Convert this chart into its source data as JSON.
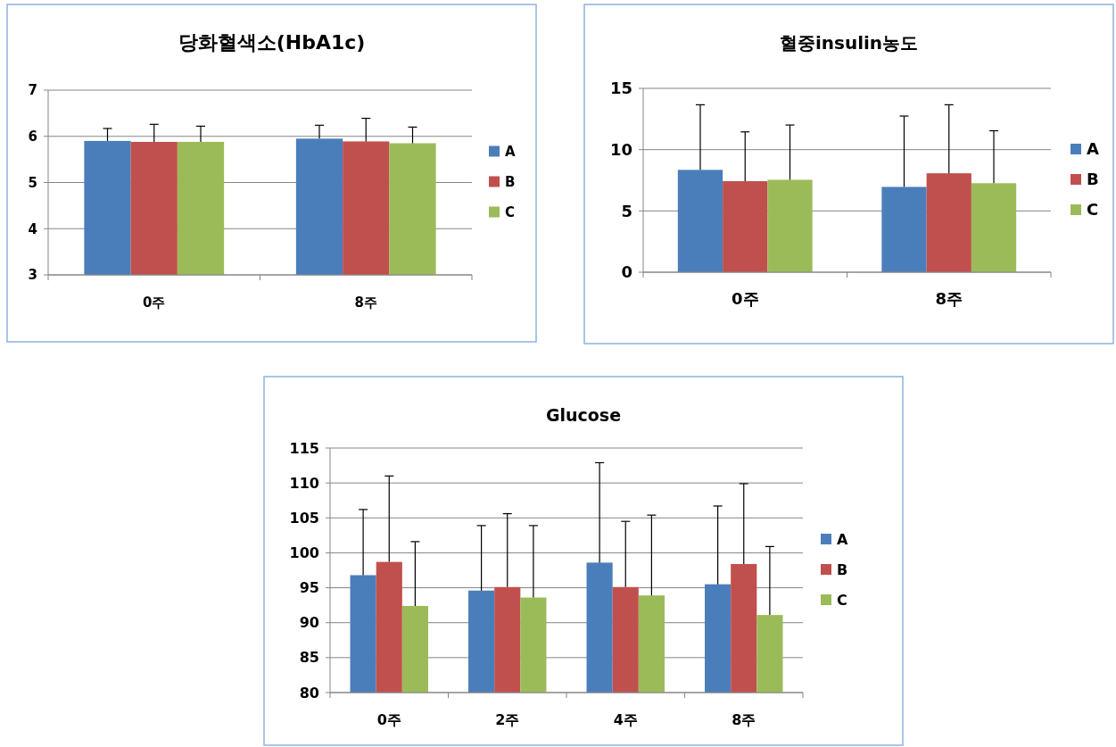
{
  "chart_data": [
    {
      "type": "bar",
      "title": "당화혈색소(HbA1c)",
      "categories": [
        "0주",
        "8주"
      ],
      "ylim": [
        3,
        7
      ],
      "yticks": [
        3,
        4,
        5,
        6,
        7
      ],
      "grid": "y",
      "legend": "right",
      "series": [
        {
          "name": "A",
          "color": "#4a7ebb",
          "values": [
            5.9,
            5.95
          ],
          "errors": [
            [
              5.9,
              6.17
            ],
            [
              5.95,
              6.24
            ]
          ]
        },
        {
          "name": "B",
          "color": "#c0504d",
          "values": [
            5.88,
            5.89
          ],
          "errors": [
            [
              5.88,
              6.26
            ],
            [
              5.89,
              6.39
            ]
          ]
        },
        {
          "name": "C",
          "color": "#9bbb59",
          "values": [
            5.88,
            5.85
          ],
          "errors": [
            [
              5.88,
              6.22
            ],
            [
              5.85,
              6.2
            ]
          ]
        }
      ]
    },
    {
      "type": "bar",
      "title": "혈중insulin농도",
      "categories": [
        "0주",
        "8주"
      ],
      "ylim": [
        0,
        15
      ],
      "yticks": [
        0,
        5,
        10,
        15
      ],
      "grid": "y",
      "legend": "right",
      "series": [
        {
          "name": "A",
          "color": "#4a7ebb",
          "values": [
            8.35,
            6.96
          ],
          "errors": [
            [
              8.35,
              13.66
            ],
            [
              6.96,
              12.74
            ]
          ]
        },
        {
          "name": "B",
          "color": "#c0504d",
          "values": [
            7.43,
            8.07
          ],
          "errors": [
            [
              7.43,
              11.45
            ],
            [
              8.07,
              13.66
            ]
          ]
        },
        {
          "name": "C",
          "color": "#9bbb59",
          "values": [
            7.54,
            7.26
          ],
          "errors": [
            [
              7.54,
              12.01
            ],
            [
              7.26,
              11.54
            ]
          ]
        }
      ]
    },
    {
      "type": "bar",
      "title": "Glucose",
      "categories": [
        "0주",
        "2주",
        "4주",
        "8주"
      ],
      "ylim": [
        80,
        115
      ],
      "yticks": [
        80,
        85,
        90,
        95,
        100,
        105,
        110,
        115
      ],
      "grid": "y",
      "legend": "right",
      "series": [
        {
          "name": "A",
          "color": "#4a7ebb",
          "values": [
            96.8,
            94.6,
            98.6,
            95.5
          ],
          "errors": [
            [
              96.8,
              106.2
            ],
            [
              94.6,
              103.9
            ],
            [
              98.6,
              112.9
            ],
            [
              95.5,
              106.7
            ]
          ]
        },
        {
          "name": "B",
          "color": "#c0504d",
          "values": [
            98.7,
            95.1,
            95.1,
            98.4
          ],
          "errors": [
            [
              98.7,
              111
            ],
            [
              95.1,
              105.6
            ],
            [
              95.1,
              104.5
            ],
            [
              98.4,
              109.9
            ]
          ]
        },
        {
          "name": "C",
          "color": "#9bbb59",
          "values": [
            92.4,
            93.6,
            93.9,
            91.1
          ],
          "errors": [
            [
              92.4,
              101.6
            ],
            [
              93.6,
              103.9
            ],
            [
              93.9,
              105.4
            ],
            [
              91.1,
              100.9
            ]
          ]
        }
      ]
    }
  ]
}
